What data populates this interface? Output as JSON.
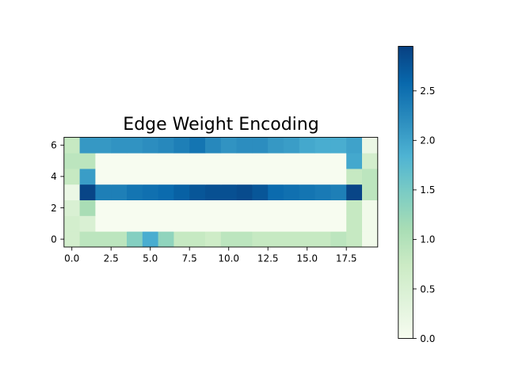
{
  "chart_data": {
    "type": "heatmap",
    "title": "Edge Weight Encoding",
    "xlabel": "",
    "ylabel": "",
    "x_range": [
      -0.5,
      19.5
    ],
    "y_range": [
      -0.5,
      6.5
    ],
    "x_ticks": [
      0.0,
      2.5,
      5.0,
      7.5,
      10.0,
      12.5,
      15.0,
      17.5
    ],
    "x_tick_labels": [
      "0.0",
      "2.5",
      "5.0",
      "7.5",
      "10.0",
      "12.5",
      "15.0",
      "17.5"
    ],
    "y_ticks": [
      0,
      2,
      4,
      6
    ],
    "y_tick_labels": [
      "0",
      "2",
      "4",
      "6"
    ],
    "colormap": "GnBu",
    "colorbar": {
      "range": [
        0.0,
        2.95
      ],
      "ticks": [
        0.0,
        0.5,
        1.0,
        1.5,
        2.0,
        2.5
      ],
      "tick_labels": [
        "0.0",
        "0.5",
        "1.0",
        "1.5",
        "2.0",
        "2.5"
      ]
    },
    "origin": "lower",
    "rows": [
      [
        0.6,
        0.9,
        0.9,
        0.9,
        1.4,
        1.9,
        1.3,
        0.8,
        0.8,
        0.7,
        0.9,
        0.9,
        0.8,
        0.8,
        0.8,
        0.8,
        0.8,
        0.9,
        0.8,
        0.1
      ],
      [
        0.6,
        0.5,
        0.0,
        0.0,
        0.0,
        0.0,
        0.0,
        0.0,
        0.0,
        0.0,
        0.0,
        0.0,
        0.0,
        0.0,
        0.0,
        0.0,
        0.0,
        0.0,
        0.8,
        0.1
      ],
      [
        0.5,
        1.1,
        0.0,
        0.0,
        0.0,
        0.0,
        0.0,
        0.0,
        0.0,
        0.0,
        0.0,
        0.0,
        0.0,
        0.0,
        0.0,
        0.0,
        0.0,
        0.0,
        0.8,
        0.1
      ],
      [
        0.2,
        2.9,
        2.35,
        2.35,
        2.45,
        2.5,
        2.55,
        2.65,
        2.75,
        2.8,
        2.8,
        2.85,
        2.75,
        2.55,
        2.5,
        2.45,
        2.4,
        2.35,
        2.9,
        0.9
      ],
      [
        0.8,
        2.05,
        0.0,
        0.0,
        0.0,
        0.0,
        0.0,
        0.0,
        0.0,
        0.0,
        0.0,
        0.0,
        0.0,
        0.0,
        0.0,
        0.0,
        0.0,
        0.0,
        0.8,
        0.9
      ],
      [
        0.9,
        0.9,
        0.0,
        0.0,
        0.0,
        0.0,
        0.0,
        0.0,
        0.0,
        0.0,
        0.0,
        0.0,
        0.0,
        0.0,
        0.0,
        0.0,
        0.0,
        0.0,
        1.95,
        0.6
      ],
      [
        0.8,
        2.1,
        2.1,
        2.15,
        2.15,
        2.2,
        2.25,
        2.35,
        2.45,
        2.25,
        2.15,
        2.2,
        2.2,
        2.1,
        2.05,
        1.95,
        1.9,
        1.9,
        2.0,
        0.2
      ]
    ]
  }
}
